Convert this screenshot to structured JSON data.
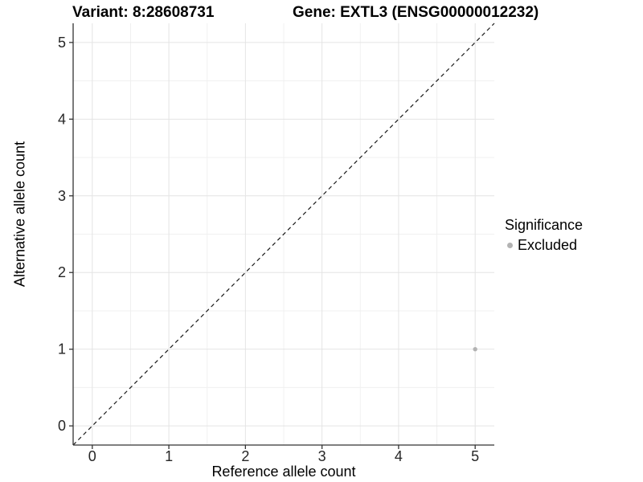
{
  "chart_data": {
    "type": "scatter",
    "title_left": "Variant: 8:28608731",
    "title_right": "Gene: EXTL3 (ENSG00000012232)",
    "xlabel": "Reference allele count",
    "ylabel": "Alternative allele count",
    "xlim": [
      -0.25,
      5.25
    ],
    "ylim": [
      -0.25,
      5.25
    ],
    "xticks": [
      0,
      1,
      2,
      3,
      4,
      5
    ],
    "yticks": [
      0,
      1,
      2,
      3,
      4,
      5
    ],
    "minor_ticks": [
      0.5,
      1.5,
      2.5,
      3.5,
      4.5
    ],
    "grid": true,
    "identity_line": {
      "style": "dashed",
      "from": [
        -0.25,
        -0.25
      ],
      "to": [
        5.25,
        5.25
      ]
    },
    "series": [
      {
        "name": "Excluded",
        "color": "#b3b3b3",
        "points": [
          {
            "x": 5,
            "y": 1
          }
        ]
      }
    ],
    "legend": {
      "title": "Significance",
      "position": "right",
      "items": [
        {
          "label": "Excluded",
          "color": "#b3b3b3"
        }
      ]
    },
    "colors": {
      "background": "#ffffff",
      "panel_background": "#ffffff",
      "grid_major": "#e4e4e4",
      "grid_minor": "#f0f0f0",
      "axis_line": "#333333",
      "tick_mark": "#333333",
      "tick_label": "#262626",
      "identity_line": "#1a1a1a"
    }
  }
}
